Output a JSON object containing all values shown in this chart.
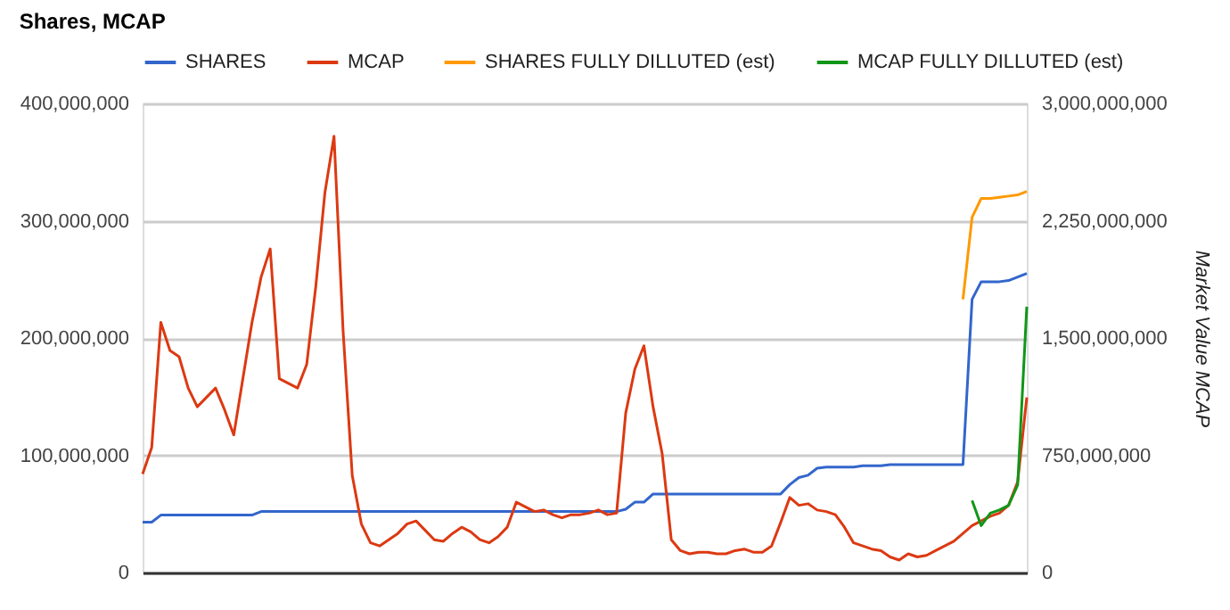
{
  "chart_data": {
    "type": "line",
    "title": "Shares, MCAP",
    "y2label": "Market Value MCAP",
    "categories": [
      null,
      null,
      null,
      null,
      null,
      null,
      null,
      null,
      null,
      null,
      null,
      null,
      null,
      null,
      null,
      null,
      null,
      null,
      null,
      null,
      null,
      null,
      null,
      null,
      null,
      null,
      null,
      null,
      null,
      null,
      null,
      null,
      null,
      null,
      null,
      null,
      null,
      null,
      null,
      null,
      null,
      null,
      null,
      null,
      null,
      null,
      null,
      null,
      null,
      null,
      null,
      null,
      null,
      null,
      null,
      null,
      null,
      null,
      null,
      null,
      null,
      null,
      null,
      null,
      null,
      null,
      null,
      null,
      null,
      null,
      null,
      null,
      null,
      null,
      null,
      null,
      null,
      null,
      null,
      null,
      null,
      null,
      null,
      null,
      null,
      null,
      null,
      null,
      null,
      null,
      null,
      null,
      null,
      null,
      null,
      null,
      null,
      null
    ],
    "series": [
      {
        "name": "SHARES",
        "color": "#3366cc",
        "values": [
          43000000,
          43000000,
          49000000,
          49000000,
          49000000,
          49000000,
          49000000,
          49000000,
          49000000,
          49000000,
          49000000,
          49000000,
          49000000,
          52000000,
          52000000,
          52000000,
          52000000,
          52000000,
          52000000,
          52000000,
          52000000,
          52000000,
          52000000,
          52000000,
          52000000,
          52000000,
          52000000,
          52000000,
          52000000,
          52000000,
          52000000,
          52000000,
          52000000,
          52000000,
          52000000,
          52000000,
          52000000,
          52000000,
          52000000,
          52000000,
          52000000,
          52000000,
          52000000,
          52000000,
          52000000,
          52000000,
          52000000,
          52000000,
          52000000,
          52000000,
          52000000,
          52000000,
          52000000,
          54000000,
          60000000,
          60000000,
          67000000,
          67000000,
          67000000,
          67000000,
          67000000,
          67000000,
          67000000,
          67000000,
          67000000,
          67000000,
          67000000,
          67000000,
          67000000,
          67000000,
          67000000,
          75000000,
          81000000,
          83000000,
          89000000,
          90000000,
          90000000,
          90000000,
          90000000,
          91000000,
          91000000,
          91000000,
          92000000,
          92000000,
          92000000,
          92000000,
          92000000,
          92000000,
          92000000,
          92000000,
          92000000,
          233000000,
          248000000,
          248000000,
          248000000,
          249000000,
          252000000,
          255000000
        ]
      },
      {
        "name": "MCAP",
        "color": "#dc3912",
        "axis": "y2",
        "values": [
          630000000,
          800000000,
          1600000000,
          1420000000,
          1380000000,
          1180000000,
          1060000000,
          1120000000,
          1180000000,
          1040000000,
          880000000,
          1240000000,
          1600000000,
          1890000000,
          2070000000,
          1240000000,
          1210000000,
          1180000000,
          1330000000,
          1830000000,
          2430000000,
          2790000000,
          1540000000,
          620000000,
          310000000,
          190000000,
          170000000,
          210000000,
          250000000,
          310000000,
          330000000,
          270000000,
          210000000,
          200000000,
          250000000,
          290000000,
          260000000,
          210000000,
          190000000,
          230000000,
          290000000,
          450000000,
          420000000,
          390000000,
          400000000,
          370000000,
          350000000,
          370000000,
          370000000,
          380000000,
          400000000,
          370000000,
          380000000,
          1020000000,
          1300000000,
          1450000000,
          1060000000,
          760000000,
          210000000,
          140000000,
          120000000,
          130000000,
          130000000,
          120000000,
          120000000,
          140000000,
          150000000,
          130000000,
          130000000,
          170000000,
          320000000,
          480000000,
          430000000,
          440000000,
          400000000,
          390000000,
          370000000,
          290000000,
          190000000,
          170000000,
          150000000,
          140000000,
          100000000,
          80000000,
          120000000,
          100000000,
          110000000,
          140000000,
          170000000,
          200000000,
          250000000,
          300000000,
          330000000,
          360000000,
          380000000,
          430000000,
          580000000,
          1120000000
        ]
      },
      {
        "name": "SHARES FULLY DILLUTED (est)",
        "color": "#ff9900",
        "values": [
          null,
          null,
          null,
          null,
          null,
          null,
          null,
          null,
          null,
          null,
          null,
          null,
          null,
          null,
          null,
          null,
          null,
          null,
          null,
          null,
          null,
          null,
          null,
          null,
          null,
          null,
          null,
          null,
          null,
          null,
          null,
          null,
          null,
          null,
          null,
          null,
          null,
          null,
          null,
          null,
          null,
          null,
          null,
          null,
          null,
          null,
          null,
          null,
          null,
          null,
          null,
          null,
          null,
          null,
          null,
          null,
          null,
          null,
          null,
          null,
          null,
          null,
          null,
          null,
          null,
          null,
          null,
          null,
          null,
          null,
          null,
          null,
          null,
          null,
          null,
          null,
          null,
          null,
          null,
          null,
          null,
          null,
          null,
          null,
          null,
          null,
          null,
          null,
          null,
          null,
          233000000,
          303000000,
          319000000,
          319000000,
          320000000,
          321000000,
          322000000,
          325000000
        ]
      },
      {
        "name": "MCAP FULLY DILLUTED (est)",
        "color": "#109618",
        "axis": "y2",
        "values": [
          null,
          null,
          null,
          null,
          null,
          null,
          null,
          null,
          null,
          null,
          null,
          null,
          null,
          null,
          null,
          null,
          null,
          null,
          null,
          null,
          null,
          null,
          null,
          null,
          null,
          null,
          null,
          null,
          null,
          null,
          null,
          null,
          null,
          null,
          null,
          null,
          null,
          null,
          null,
          null,
          null,
          null,
          null,
          null,
          null,
          null,
          null,
          null,
          null,
          null,
          null,
          null,
          null,
          null,
          null,
          null,
          null,
          null,
          null,
          null,
          null,
          null,
          null,
          null,
          null,
          null,
          null,
          null,
          null,
          null,
          null,
          null,
          null,
          null,
          null,
          null,
          null,
          null,
          null,
          null,
          null,
          null,
          null,
          null,
          null,
          null,
          null,
          null,
          null,
          null,
          null,
          460000000,
          300000000,
          380000000,
          400000000,
          430000000,
          560000000,
          1700000000
        ]
      }
    ],
    "ylim": [
      0,
      400000000
    ],
    "yticks": [
      0,
      {
        "value": 100000000,
        "label": "100,000,000"
      },
      {
        "value": 200000000,
        "label": "200,000,000"
      },
      {
        "value": 300000000,
        "label": "300,000,000"
      },
      {
        "value": 400000000,
        "label": "400,000,000"
      }
    ],
    "y2lim": [
      0,
      3000000000
    ],
    "y2ticks": [
      0,
      {
        "value": 750000000,
        "label": "750,000,000"
      },
      {
        "value": 1500000000,
        "label": "1,500,000,000"
      },
      {
        "value": 2250000000,
        "label": "2,250,000,000"
      },
      {
        "value": 3000000000,
        "label": "3,000,000,000"
      }
    ],
    "grid": "y",
    "legend": "top",
    "tick_labels": "y",
    "marker": "none",
    "line_style": "solid"
  }
}
